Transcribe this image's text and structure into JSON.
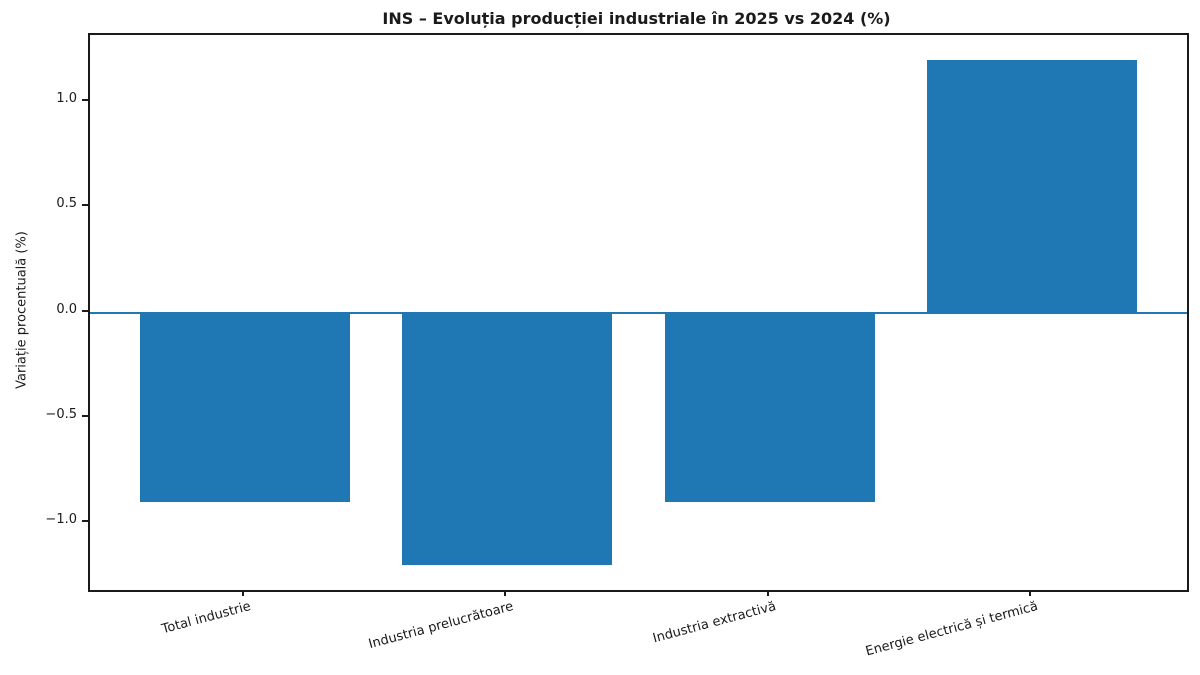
{
  "chart_data": {
    "type": "bar",
    "title": "INS – Evoluția producției industriale în 2025 vs 2024 (%)",
    "ylabel": "Variație procentuală (%)",
    "xlabel": "",
    "categories": [
      "Total industrie",
      "Industria prelucrătoare",
      "Industria extractivă",
      "Energie electrică și termică"
    ],
    "values": [
      -0.9,
      -1.2,
      -0.9,
      1.2
    ],
    "yticks": [
      1.0,
      0.5,
      0.0,
      -0.5,
      -1.0
    ],
    "ylim": [
      -1.32,
      1.32
    ],
    "bar_color": "#1f77b4",
    "zero_line_color": "#1f77b4",
    "axis_color": "#1a1a1a",
    "grid": false,
    "zero_line": true,
    "legend": null
  }
}
